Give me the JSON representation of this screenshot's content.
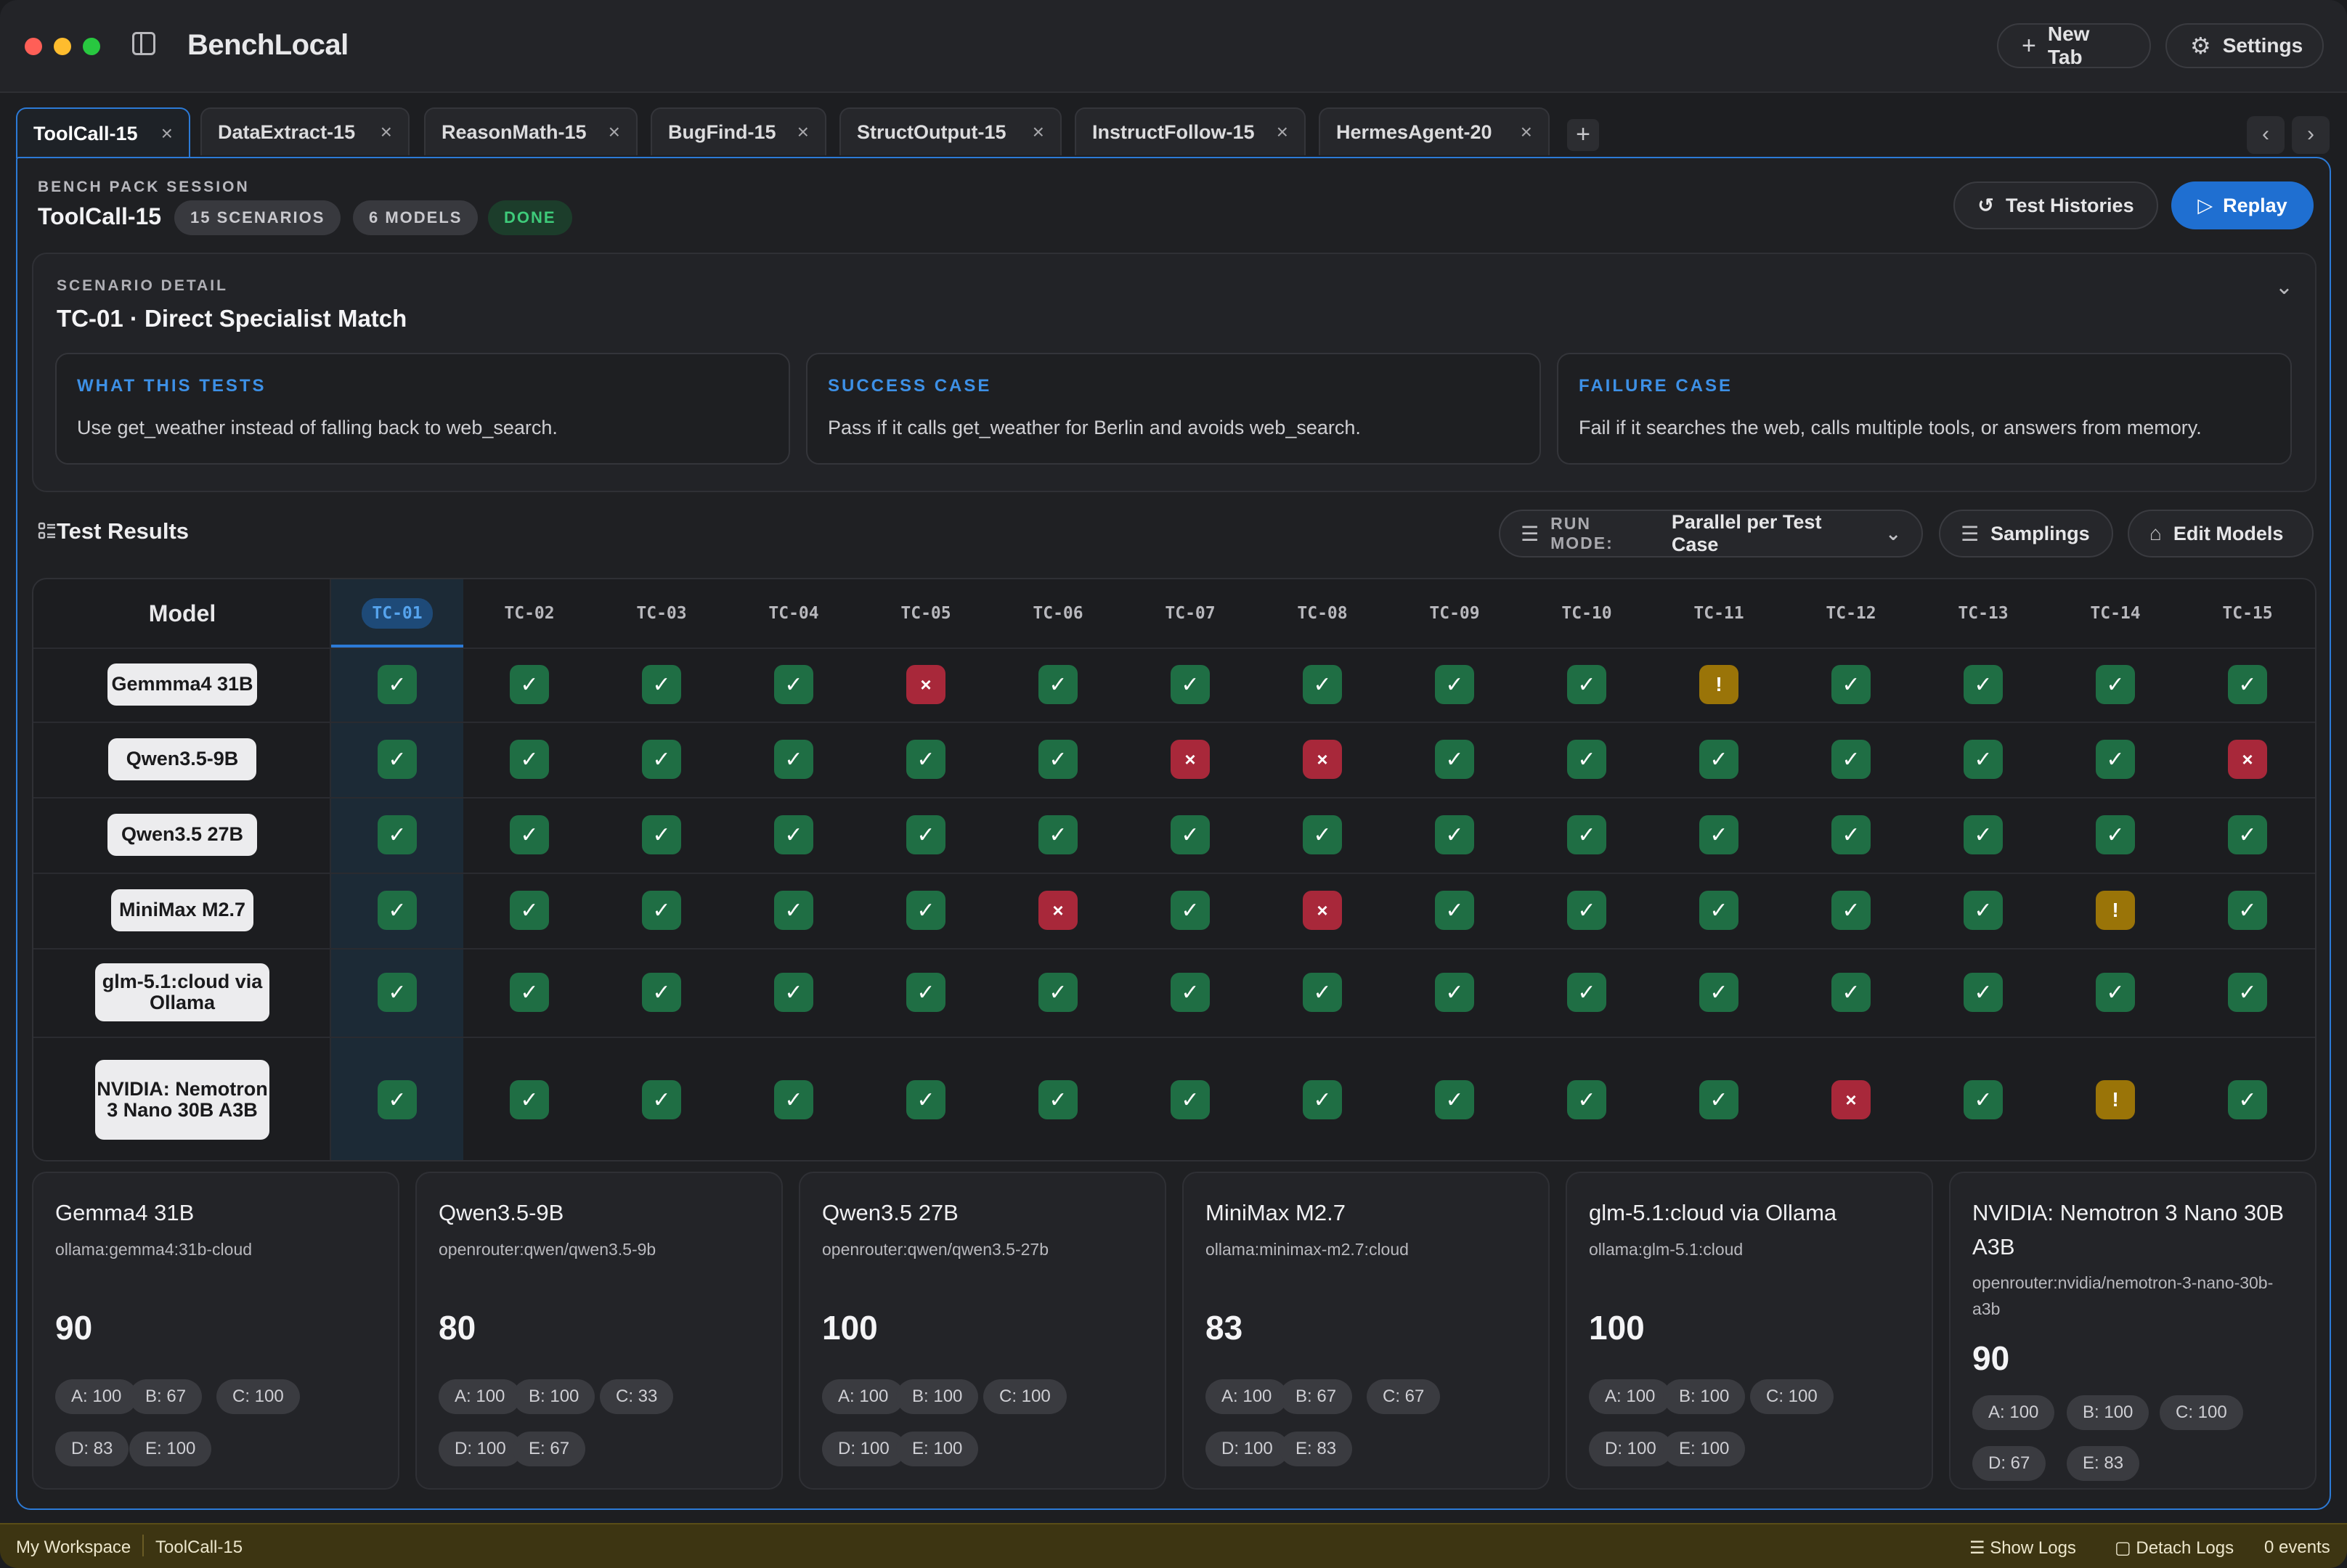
{
  "app": {
    "title": "BenchLocal",
    "new_tab_label": "New Tab",
    "settings_label": "Settings"
  },
  "tabs": [
    {
      "label": "ToolCall-15",
      "active": true
    },
    {
      "label": "DataExtract-15"
    },
    {
      "label": "ReasonMath-15"
    },
    {
      "label": "BugFind-15"
    },
    {
      "label": "StructOutput-15"
    },
    {
      "label": "InstructFollow-15"
    },
    {
      "label": "HermesAgent-20"
    }
  ],
  "session": {
    "eyebrow": "BENCH PACK SESSION",
    "name": "ToolCall-15",
    "scenarios_pill": "15 SCENARIOS",
    "models_pill": "6 MODELS",
    "status_pill": "DONE",
    "histories_label": "Test Histories",
    "replay_label": "Replay"
  },
  "scenario": {
    "eyebrow": "SCENARIO DETAIL",
    "title": "TC-01 · Direct Specialist Match",
    "what_heading": "WHAT THIS TESTS",
    "what_body": "Use get_weather instead of falling back to web_search.",
    "success_heading": "SUCCESS CASE",
    "success_body": "Pass if it calls get_weather for Berlin and avoids web_search.",
    "failure_heading": "FAILURE CASE",
    "failure_body": "Fail if it searches the web, calls multiple tools, or answers from memory."
  },
  "results": {
    "title": "Test Results",
    "run_mode_label": "RUN MODE:",
    "run_mode_value": "Parallel per Test Case",
    "samplings_label": "Samplings",
    "edit_models_label": "Edit Models",
    "model_header": "Model",
    "test_cases": [
      "TC-01",
      "TC-02",
      "TC-03",
      "TC-04",
      "TC-05",
      "TC-06",
      "TC-07",
      "TC-08",
      "TC-09",
      "TC-10",
      "TC-11",
      "TC-12",
      "TC-13",
      "TC-14",
      "TC-15"
    ],
    "rows": [
      {
        "model": "Gemmma4 31B",
        "cells": [
          "pass",
          "pass",
          "pass",
          "pass",
          "fail",
          "pass",
          "pass",
          "pass",
          "pass",
          "pass",
          "warn",
          "pass",
          "pass",
          "pass",
          "pass"
        ]
      },
      {
        "model": "Qwen3.5-9B",
        "cells": [
          "pass",
          "pass",
          "pass",
          "pass",
          "pass",
          "pass",
          "fail",
          "fail",
          "pass",
          "pass",
          "pass",
          "pass",
          "pass",
          "pass",
          "fail"
        ]
      },
      {
        "model": "Qwen3.5 27B",
        "cells": [
          "pass",
          "pass",
          "pass",
          "pass",
          "pass",
          "pass",
          "pass",
          "pass",
          "pass",
          "pass",
          "pass",
          "pass",
          "pass",
          "pass",
          "pass"
        ]
      },
      {
        "model": "MiniMax M2.7",
        "cells": [
          "pass",
          "pass",
          "pass",
          "pass",
          "pass",
          "fail",
          "pass",
          "fail",
          "pass",
          "pass",
          "pass",
          "pass",
          "pass",
          "warn",
          "pass"
        ]
      },
      {
        "model": "glm-5.1:cloud via Ollama",
        "cells": [
          "pass",
          "pass",
          "pass",
          "pass",
          "pass",
          "pass",
          "pass",
          "pass",
          "pass",
          "pass",
          "pass",
          "pass",
          "pass",
          "pass",
          "pass"
        ]
      },
      {
        "model": "NVIDIA: Nemotron 3 Nano 30B A3B",
        "cells": [
          "pass",
          "pass",
          "pass",
          "pass",
          "pass",
          "pass",
          "pass",
          "pass",
          "pass",
          "pass",
          "pass",
          "fail",
          "pass",
          "warn",
          "pass"
        ]
      }
    ]
  },
  "summaries": [
    {
      "name": "Gemma4 31B",
      "id": "ollama:gemma4:31b-cloud",
      "score": "90",
      "badges": [
        "A: 100",
        "B: 67",
        "C: 100",
        "D: 83",
        "E: 100"
      ]
    },
    {
      "name": "Qwen3.5-9B",
      "id": "openrouter:qwen/qwen3.5-9b",
      "score": "80",
      "badges": [
        "A: 100",
        "B: 100",
        "C: 33",
        "D: 100",
        "E: 67"
      ]
    },
    {
      "name": "Qwen3.5 27B",
      "id": "openrouter:qwen/qwen3.5-27b",
      "score": "100",
      "badges": [
        "A: 100",
        "B: 100",
        "C: 100",
        "D: 100",
        "E: 100"
      ]
    },
    {
      "name": "MiniMax M2.7",
      "id": "ollama:minimax-m2.7:cloud",
      "score": "83",
      "badges": [
        "A: 100",
        "B: 67",
        "C: 67",
        "D: 100",
        "E: 83"
      ]
    },
    {
      "name": "glm-5.1:cloud via Ollama",
      "id": "ollama:glm-5.1:cloud",
      "score": "100",
      "badges": [
        "A: 100",
        "B: 100",
        "C: 100",
        "D: 100",
        "E: 100"
      ]
    },
    {
      "name": "NVIDIA: Nemotron 3 Nano 30B A3B",
      "id": "openrouter:nvidia/nemotron-3-nano-30b-a3b",
      "score": "90",
      "badges": [
        "A: 100",
        "B: 100",
        "C: 100",
        "D: 67",
        "E: 83"
      ]
    }
  ],
  "statusbar": {
    "workspace": "My Workspace",
    "session": "ToolCall-15",
    "show_logs": "Show Logs",
    "detach_logs": "Detach Logs",
    "events": "0 events"
  },
  "icons": {
    "pass": "✓",
    "fail": "×",
    "warn": "!"
  },
  "colors": {
    "accent": "#2c7ad6",
    "pass": "#1f6e44",
    "fail": "#a8283a",
    "warn": "#9a7408",
    "done": "#3ecb7a"
  }
}
